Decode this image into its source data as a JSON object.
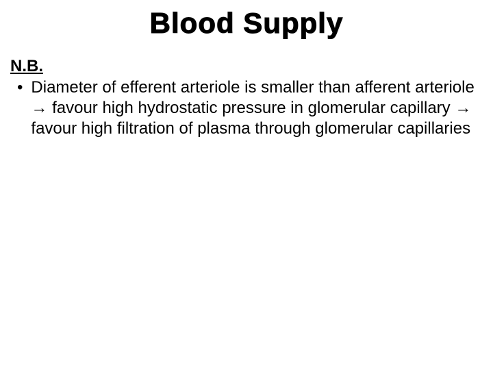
{
  "slide": {
    "title": "Blood Supply",
    "nb_label": "N.B.",
    "bullet_marker": "•",
    "bullet_text": "Diameter of efferent arteriole is smaller than afferent arteriole  → favour high hydrostatic pressure in glomerular capillary → favour high filtration of plasma through glomerular capillaries"
  },
  "styles": {
    "background_color": "#ffffff",
    "text_color": "#000000",
    "title_fontsize": 42,
    "body_fontsize": 24,
    "title_weight": "bold",
    "nb_weight": "bold"
  }
}
